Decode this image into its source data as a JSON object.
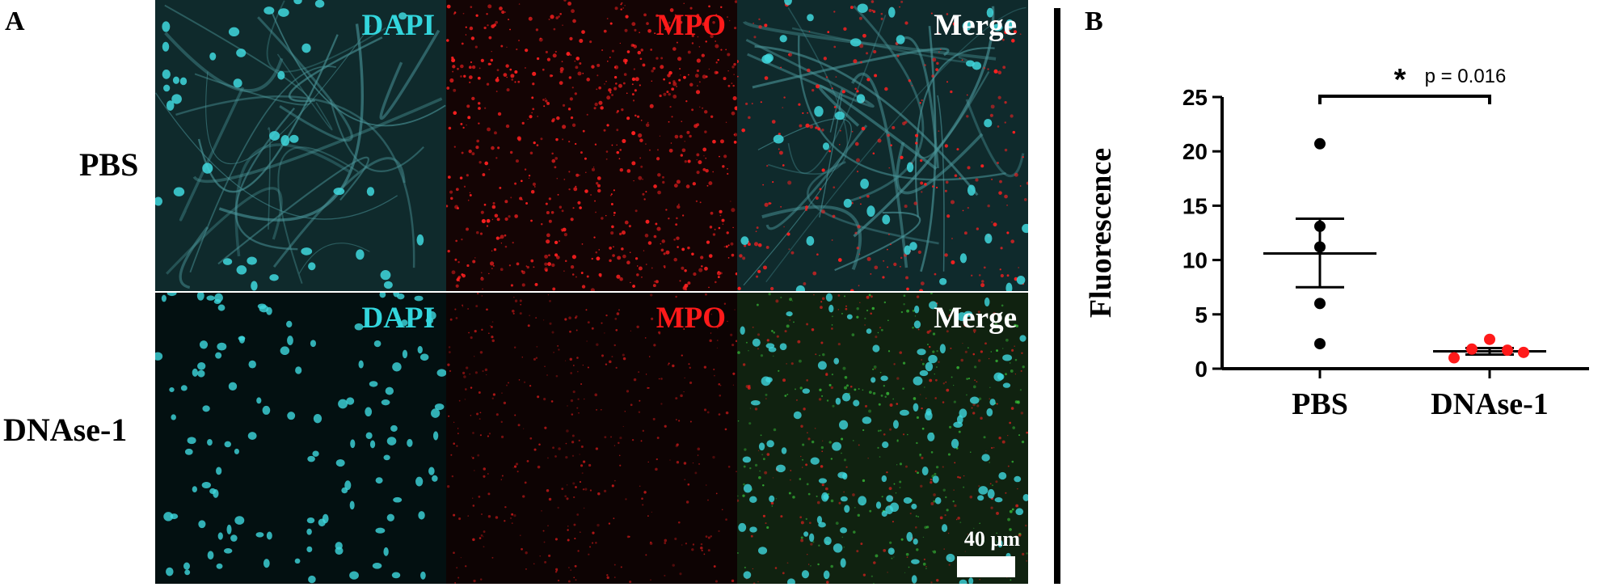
{
  "panel_a": {
    "letter": "A",
    "rows": [
      "PBS",
      "DNAse-1"
    ],
    "channels": [
      {
        "label": "DAPI",
        "color": "#33d6dd"
      },
      {
        "label": "MPO",
        "color": "#ff1a1a"
      },
      {
        "label": "Merge",
        "color": "#ffffff"
      }
    ],
    "scale_bar": "40 µm"
  },
  "panel_b": {
    "letter": "B"
  },
  "chart_data": {
    "type": "scatter",
    "title": "",
    "xlabel": "",
    "ylabel": "Fluorescence",
    "categories": [
      "PBS",
      "DNAse-1"
    ],
    "ylim": [
      0,
      25
    ],
    "yticks": [
      0,
      5,
      10,
      15,
      20,
      25
    ],
    "series": [
      {
        "category": "PBS",
        "color": "#000000",
        "values": [
          20.7,
          13.1,
          11.2,
          6.0,
          2.3
        ],
        "mean": 10.6,
        "sem_upper": 13.8,
        "sem_lower": 7.5
      },
      {
        "category": "DNAse-1",
        "color": "#ff1a1a",
        "values": [
          2.7,
          1.8,
          1.7,
          1.5,
          1.0
        ],
        "mean": 1.6,
        "sem_upper": 1.9,
        "sem_lower": 1.3
      }
    ],
    "annotation": {
      "marker": "*",
      "text": "p = 0.016"
    },
    "grid": false
  }
}
